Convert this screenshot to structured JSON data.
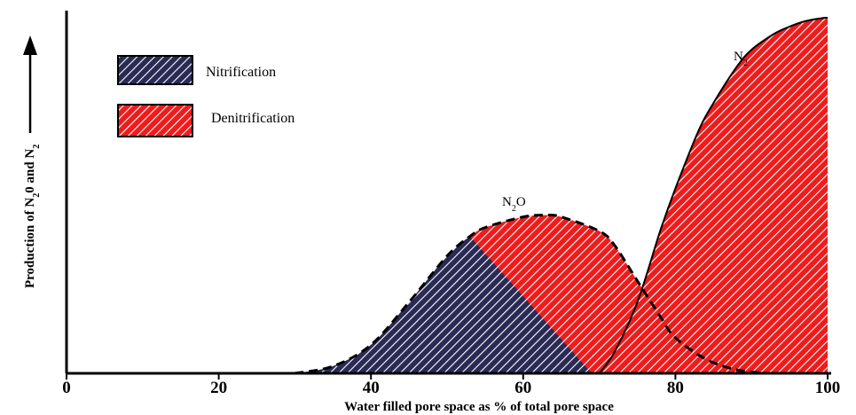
{
  "chart_data": {
    "type": "area",
    "xlabel": "Water filled pore space as % of total pore space",
    "ylabel": {
      "prefix": "Production of N",
      "sub1": "2",
      "middle": "0 and N",
      "sub2": "2"
    },
    "xlim": [
      0,
      100
    ],
    "ylim": [
      0,
      1
    ],
    "xticks": [
      "0",
      "20",
      "40",
      "60",
      "80",
      "100"
    ],
    "grid": false,
    "legend": {
      "placement": "top-left",
      "entries": [
        {
          "label": "Nitrification",
          "color": "#2a2a55",
          "pattern": "hatched"
        },
        {
          "label": "Denitrification",
          "color": "#ee1c1c",
          "pattern": "hatched"
        }
      ]
    },
    "series": [
      {
        "name": "N2O",
        "label_main": "N",
        "label_sub": "2",
        "label_tail": "O",
        "line": "dashed",
        "x": [
          30,
          35,
          40,
          45,
          50,
          53,
          55,
          60,
          63,
          65,
          70,
          72,
          75,
          78,
          80,
          84,
          88,
          92
        ],
        "values": [
          0,
          0.02,
          0.08,
          0.2,
          0.33,
          0.385,
          0.41,
          0.44,
          0.445,
          0.44,
          0.4,
          0.36,
          0.26,
          0.16,
          0.1,
          0.04,
          0.01,
          0
        ]
      },
      {
        "name": "N2",
        "label_main": "N",
        "label_sub": "2",
        "label_tail": "",
        "line": "solid",
        "x": [
          70,
          72,
          75,
          78,
          80,
          83,
          85,
          88,
          90,
          93,
          95,
          97,
          99,
          100
        ],
        "values": [
          0,
          0.06,
          0.2,
          0.4,
          0.52,
          0.68,
          0.76,
          0.86,
          0.91,
          0.955,
          0.975,
          0.99,
          0.998,
          1.0
        ]
      }
    ],
    "regions": [
      {
        "name": "Nitrification",
        "boundary_peak_x": 53,
        "end_x": 69
      },
      {
        "name": "Denitrification"
      }
    ]
  }
}
